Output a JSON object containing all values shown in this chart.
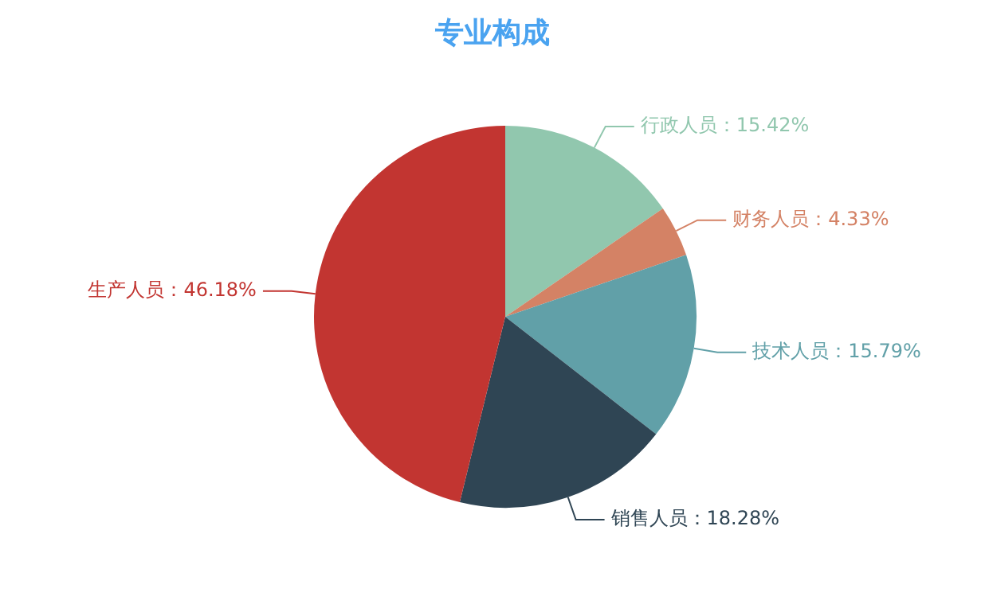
{
  "chart_data": {
    "type": "pie",
    "title": "专业构成",
    "categories": [
      "行政人员",
      "财务人员",
      "技术人员",
      "销售人员",
      "生产人员"
    ],
    "values": [
      15.42,
      4.33,
      15.79,
      18.28,
      46.18
    ],
    "colors": [
      "#91c7ae",
      "#d48265",
      "#61a0a8",
      "#2f4554",
      "#c23531"
    ],
    "value_labels": [
      "15.42%",
      "4.33%",
      "15.79%",
      "18.28%",
      "46.18%"
    ],
    "legend": false
  }
}
